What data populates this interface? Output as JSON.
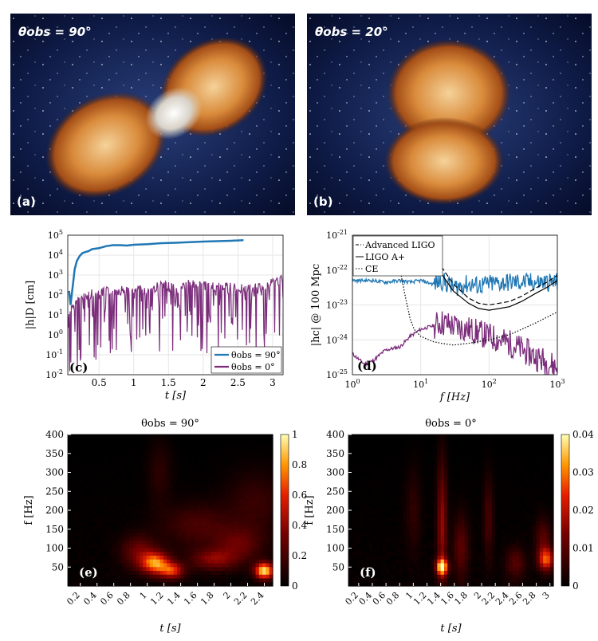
{
  "image_panels": {
    "a": {
      "title": "θobs = 90°",
      "letter": "(a)"
    },
    "b": {
      "title": "θobs = 20°",
      "letter": "(b)"
    }
  },
  "chart_data": [
    {
      "id": "c",
      "type": "line",
      "letter": "(c)",
      "xlabel": "t [s]",
      "ylabel": "|h|D [cm]",
      "xlim": [
        0.05,
        3.15
      ],
      "ylim_log10": [
        -2,
        5
      ],
      "yscale": "log",
      "xticks": [
        0.5,
        1,
        1.5,
        2,
        2.5,
        3
      ],
      "xtick_labels": [
        "0.5",
        "1",
        "1.5",
        "2",
        "2.5",
        "3"
      ],
      "yticks_exp": [
        -2,
        -1,
        0,
        1,
        2,
        3,
        4,
        5
      ],
      "grid": true,
      "legend_placement": "bottom-right",
      "series": [
        {
          "name": "θobs = 90°",
          "color": "#1f77b4",
          "x": [
            0.07,
            0.09,
            0.12,
            0.15,
            0.18,
            0.22,
            0.26,
            0.3,
            0.35,
            0.4,
            0.5,
            0.6,
            0.7,
            0.8,
            0.9,
            1.0,
            1.2,
            1.4,
            1.6,
            1.8,
            2.0,
            2.2,
            2.4,
            2.58
          ],
          "y_log10": [
            2.2,
            1.5,
            2.4,
            3.3,
            3.7,
            3.95,
            4.1,
            4.15,
            4.2,
            4.3,
            4.35,
            4.45,
            4.5,
            4.5,
            4.48,
            4.52,
            4.55,
            4.6,
            4.62,
            4.65,
            4.68,
            4.7,
            4.72,
            4.75
          ]
        },
        {
          "name": "θobs = 0°",
          "color": "#7b2d7b",
          "x": [
            0.05,
            0.2,
            0.4,
            0.6,
            0.8,
            1.0,
            1.2,
            1.4,
            1.6,
            1.8,
            2.0,
            2.2,
            2.4,
            2.6,
            2.8,
            3.0,
            3.15
          ],
          "y_log10": [
            1.2,
            2.0,
            2.3,
            2.4,
            2.5,
            2.4,
            2.6,
            2.7,
            2.6,
            2.8,
            2.7,
            2.6,
            2.7,
            2.5,
            2.6,
            2.9,
            3.0
          ]
        }
      ]
    },
    {
      "id": "d",
      "type": "line",
      "letter": "(d)",
      "xlabel": "f [Hz]",
      "ylabel": "|hc| @ 100 Mpc",
      "xlim_log10": [
        0,
        3
      ],
      "ylim_log10": [
        -25,
        -21
      ],
      "xscale": "log",
      "yscale": "log",
      "xticks_exp": [
        0,
        1,
        2,
        3
      ],
      "yticks_exp": [
        -25,
        -24,
        -23,
        -22,
        -21
      ],
      "grid": true,
      "legend_placement": "top-left",
      "legend": [
        "Advanced LIGO",
        "LIGO A+",
        "CE"
      ],
      "series": [
        {
          "name": "θobs = 90°",
          "color": "#1f77b4",
          "x": [
            1,
            2,
            3,
            5,
            7,
            10,
            15,
            20,
            30,
            50,
            70,
            100,
            200,
            500,
            1000
          ],
          "y_log10": [
            -22.3,
            -22.3,
            -22.35,
            -22.3,
            -22.35,
            -22.3,
            -22.4,
            -22.3,
            -22.5,
            -22.4,
            -22.45,
            -22.4,
            -22.35,
            -22.35,
            -22.35
          ]
        },
        {
          "name": "θobs = 0°",
          "color": "#7b2d7b",
          "x": [
            1,
            1.5,
            2,
            3,
            5,
            7,
            10,
            15,
            20,
            30,
            50,
            70,
            100,
            200,
            500,
            1000
          ],
          "y_log10": [
            -24.4,
            -24.7,
            -24.6,
            -24.3,
            -24.2,
            -23.9,
            -23.7,
            -23.6,
            -23.5,
            -23.6,
            -23.7,
            -23.8,
            -23.9,
            -24.1,
            -24.5,
            -24.8
          ]
        },
        {
          "name": "Advanced LIGO",
          "color": "#000000",
          "dash": "6,3",
          "x": [
            20,
            30,
            50,
            70,
            100,
            200,
            300,
            500,
            700,
            1000
          ],
          "y_log10": [
            -21.9,
            -22.4,
            -22.8,
            -22.95,
            -23.0,
            -22.9,
            -22.75,
            -22.5,
            -22.35,
            -22.15
          ]
        },
        {
          "name": "LIGO A+",
          "color": "#000000",
          "dash": "",
          "x": [
            20,
            30,
            50,
            70,
            100,
            200,
            300,
            500,
            700,
            1000
          ],
          "y_log10": [
            -22.1,
            -22.6,
            -22.95,
            -23.1,
            -23.15,
            -23.05,
            -22.9,
            -22.65,
            -22.5,
            -22.3
          ]
        },
        {
          "name": "CE",
          "color": "#000000",
          "dash": "1.5,2",
          "x": [
            5,
            6,
            7,
            8,
            10,
            15,
            20,
            30,
            50,
            100,
            200,
            300,
            500,
            1000
          ],
          "y_log10": [
            -22.0,
            -22.8,
            -23.4,
            -23.7,
            -23.9,
            -24.05,
            -24.1,
            -24.15,
            -24.1,
            -24.0,
            -23.85,
            -23.7,
            -23.5,
            -23.2
          ]
        }
      ]
    },
    {
      "id": "e",
      "type": "heatmap",
      "letter": "(e)",
      "title": "θobs = 90°",
      "xlabel": "t [s]",
      "ylabel": "f [Hz]",
      "xlim": [
        0.05,
        2.5
      ],
      "ylim": [
        0,
        400
      ],
      "xticks": [
        0.2,
        0.4,
        0.6,
        0.8,
        1,
        1.2,
        1.4,
        1.6,
        1.8,
        2,
        2.2,
        2.4
      ],
      "xtick_labels": [
        "0.2",
        "0.4",
        "0.6",
        "0.8",
        "1",
        "1.2",
        "1.4",
        "1.6",
        "1.8",
        "2",
        "2.2",
        "2.4"
      ],
      "yticks": [
        50,
        100,
        150,
        200,
        250,
        300,
        350,
        400
      ],
      "ytick_labels": [
        "50",
        "100",
        "150",
        "200",
        "250",
        "300",
        "350",
        "400"
      ],
      "colorbar": {
        "min": 0,
        "max": 1,
        "ticks": [
          0,
          0.2,
          0.4,
          0.6,
          0.8,
          1
        ],
        "tick_labels": [
          "0",
          "0.2",
          "0.4",
          "0.6",
          "0.8",
          "1"
        ]
      },
      "hotspots": [
        {
          "t": 1.1,
          "f": 60,
          "v": 0.75,
          "rt": 0.12,
          "rf": 20
        },
        {
          "t": 1.3,
          "f": 40,
          "v": 0.55,
          "rt": 0.1,
          "rf": 15
        },
        {
          "t": 2.4,
          "f": 40,
          "v": 0.95,
          "rt": 0.08,
          "rf": 15
        },
        {
          "t": 1.8,
          "f": 70,
          "v": 0.35,
          "rt": 0.2,
          "rf": 20
        },
        {
          "t": 0.9,
          "f": 90,
          "v": 0.3,
          "rt": 0.15,
          "rf": 30
        },
        {
          "t": 2.1,
          "f": 110,
          "v": 0.25,
          "rt": 0.2,
          "rf": 30
        },
        {
          "t": 1.6,
          "f": 160,
          "v": 0.2,
          "rt": 0.3,
          "rf": 40
        },
        {
          "t": 2.3,
          "f": 220,
          "v": 0.15,
          "rt": 0.25,
          "rf": 60
        },
        {
          "t": 1.15,
          "f": 300,
          "v": 0.12,
          "rt": 0.1,
          "rf": 60
        }
      ]
    },
    {
      "id": "f",
      "type": "heatmap",
      "letter": "(f)",
      "title": "θobs = 0°",
      "xlabel": "t [s]",
      "ylabel": "f [Hz]",
      "xlim": [
        0.05,
        3.05
      ],
      "ylim": [
        0,
        400
      ],
      "xticks": [
        0.2,
        0.4,
        0.6,
        0.8,
        1,
        1.2,
        1.4,
        1.6,
        1.8,
        2,
        2.2,
        2.4,
        2.6,
        2.8,
        3
      ],
      "xtick_labels": [
        "0.2",
        "0.4",
        "0.6",
        "0.8",
        "1",
        "1.2",
        "1.4",
        "1.6",
        "1.8",
        "2",
        "2.2",
        "2.4",
        "2.6",
        "2.8",
        "3"
      ],
      "yticks": [
        50,
        100,
        150,
        200,
        250,
        300,
        350,
        400
      ],
      "ytick_labels": [
        "50",
        "100",
        "150",
        "200",
        "250",
        "300",
        "350",
        "400"
      ],
      "colorbar": {
        "min": 0,
        "max": 0.04,
        "ticks": [
          0,
          0.01,
          0.02,
          0.03,
          0.04
        ],
        "tick_labels": [
          "0",
          "0.01",
          "0.02",
          "0.03",
          "0.04"
        ]
      },
      "hotspots": [
        {
          "t": 1.42,
          "f": 50,
          "v": 0.036,
          "rt": 0.06,
          "rf": 15
        },
        {
          "t": 1.42,
          "f": 160,
          "v": 0.016,
          "rt": 0.05,
          "rf": 120
        },
        {
          "t": 2.95,
          "f": 70,
          "v": 0.025,
          "rt": 0.08,
          "rf": 20
        },
        {
          "t": 2.9,
          "f": 120,
          "v": 0.01,
          "rt": 0.08,
          "rf": 40
        },
        {
          "t": 1.7,
          "f": 100,
          "v": 0.01,
          "rt": 0.08,
          "rf": 60
        },
        {
          "t": 2.5,
          "f": 60,
          "v": 0.009,
          "rt": 0.1,
          "rf": 30
        },
        {
          "t": 2.1,
          "f": 180,
          "v": 0.008,
          "rt": 0.05,
          "rf": 80
        },
        {
          "t": 1.0,
          "f": 200,
          "v": 0.005,
          "rt": 0.08,
          "rf": 80
        }
      ]
    }
  ]
}
